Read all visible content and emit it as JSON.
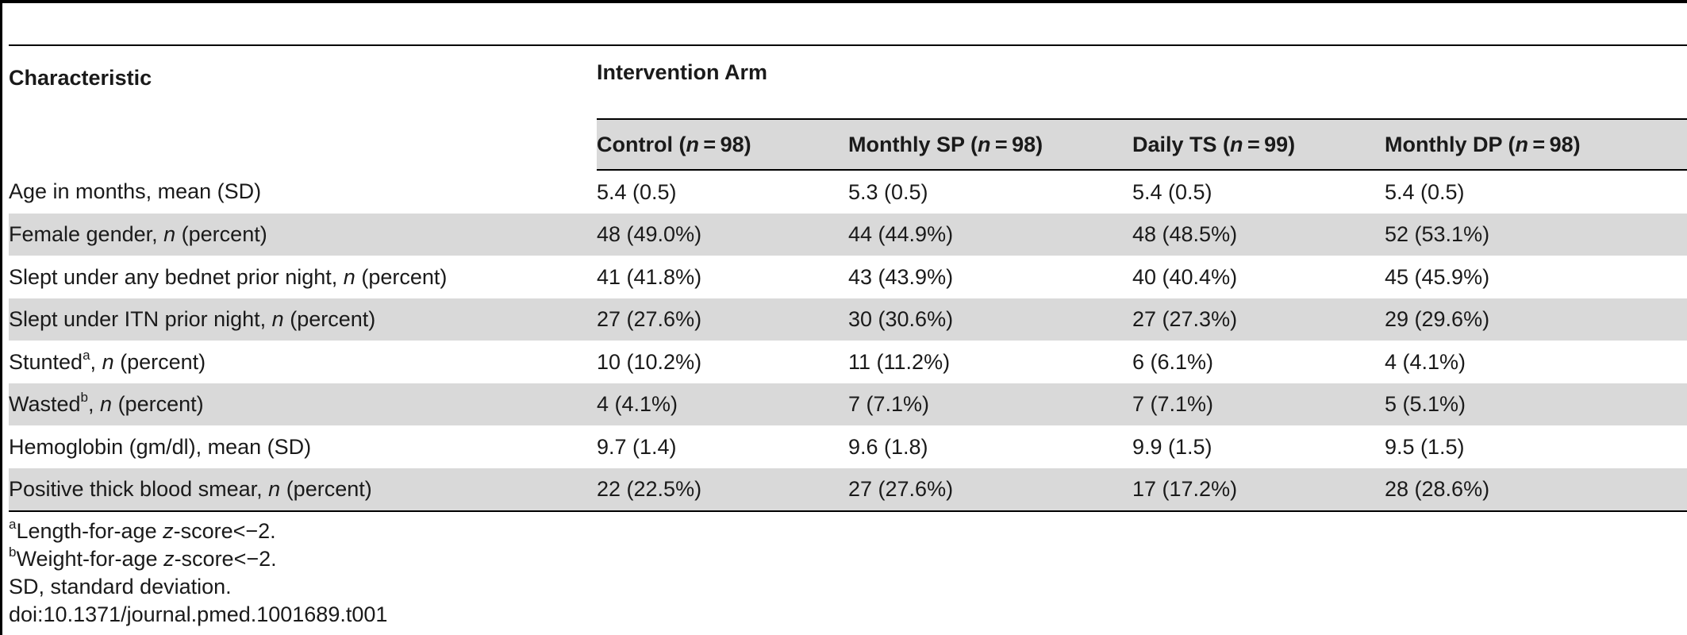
{
  "table": {
    "col_characteristic": "Characteristic",
    "col_group": "Intervention Arm",
    "arms": [
      {
        "label": "Control",
        "n": "98"
      },
      {
        "label": "Monthly SP",
        "n": "98"
      },
      {
        "label": "Daily TS",
        "n": "99"
      },
      {
        "label": "Monthly DP",
        "n": "98"
      }
    ],
    "rows": [
      {
        "label_pre": "Age in months, mean (SD)",
        "sup": "",
        "italic": "",
        "label_post": "",
        "values": [
          "5.4 (0.5)",
          "5.3 (0.5)",
          "5.4 (0.5)",
          "5.4 (0.5)"
        ]
      },
      {
        "label_pre": "Female gender, ",
        "sup": "",
        "italic": "n",
        "label_post": " (percent)",
        "values": [
          "48 (49.0%)",
          "44 (44.9%)",
          "48 (48.5%)",
          "52 (53.1%)"
        ]
      },
      {
        "label_pre": "Slept under any bednet prior night, ",
        "sup": "",
        "italic": "n",
        "label_post": " (percent)",
        "values": [
          "41 (41.8%)",
          "43 (43.9%)",
          "40 (40.4%)",
          "45 (45.9%)"
        ]
      },
      {
        "label_pre": "Slept under ITN prior night, ",
        "sup": "",
        "italic": "n",
        "label_post": " (percent)",
        "values": [
          "27 (27.6%)",
          "30 (30.6%)",
          "27 (27.3%)",
          "29 (29.6%)"
        ]
      },
      {
        "label_pre": "Stunted",
        "sup": "a",
        "italic": "n",
        "label_post": " (percent)",
        "values": [
          "10 (10.2%)",
          "11 (11.2%)",
          "6 (6.1%)",
          "4 (4.1%)"
        ]
      },
      {
        "label_pre": "Wasted",
        "sup": "b",
        "italic": "n",
        "label_post": " (percent)",
        "values": [
          "4 (4.1%)",
          "7 (7.1%)",
          "7 (7.1%)",
          "5 (5.1%)"
        ]
      },
      {
        "label_pre": "Hemoglobin (gm/dl), mean (SD)",
        "sup": "",
        "italic": "",
        "label_post": "",
        "values": [
          "9.7 (1.4)",
          "9.6 (1.8)",
          "9.9 (1.5)",
          "9.5 (1.5)"
        ]
      },
      {
        "label_pre": "Positive thick blood smear, ",
        "sup": "",
        "italic": "n",
        "label_post": " (percent)",
        "values": [
          "22 (22.5%)",
          "27 (27.6%)",
          "17 (17.2%)",
          "28 (28.6%)"
        ]
      }
    ]
  },
  "footnotes": {
    "a_mark": "a",
    "a_pre": "Length-for-age ",
    "a_italic": "z",
    "a_post": "-score<−2.",
    "b_mark": "b",
    "b_pre": "Weight-for-age ",
    "b_italic": "z",
    "b_post": "-score<−2.",
    "sd": "SD, standard deviation.",
    "doi": "doi:10.1371/journal.pmed.1001689.t001"
  }
}
